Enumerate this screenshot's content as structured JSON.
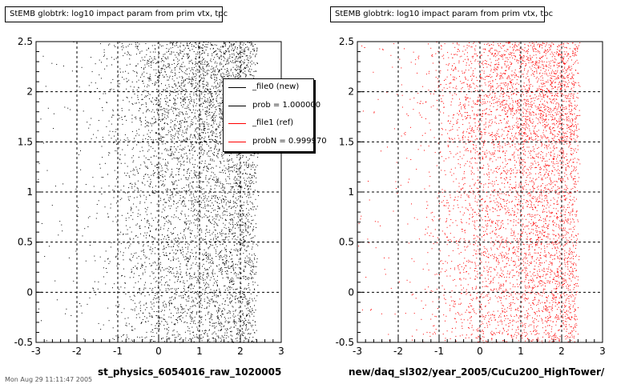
{
  "chart_data": [
    {
      "type": "scatter",
      "title": "StEMB globtrk: log10 impact param from prim vtx, tpc",
      "xlabel": "st_physics_6054016_raw_1020005",
      "ylabel": "",
      "xlim": [
        -3,
        3
      ],
      "ylim": [
        -0.5,
        2.5
      ],
      "xticks": [
        -3,
        -2,
        -1,
        0,
        1,
        2,
        3
      ],
      "yticks": [
        -0.5,
        0,
        0.5,
        1,
        1.5,
        2,
        2.5
      ],
      "grid": true,
      "series": [
        {
          "name": "_file0 (new)",
          "color": "#000000",
          "x_range": [
            -2.5,
            2.45
          ],
          "density_profile": {
            "x": [
              -2.5,
              -2.0,
              -1.5,
              -1.0,
              -0.5,
              0.0,
              0.5,
              1.0,
              1.5,
              2.0,
              2.3,
              2.45
            ],
            "relative_density": [
              0.01,
              0.03,
              0.06,
              0.15,
              0.35,
              0.55,
              0.7,
              0.8,
              0.88,
              1.0,
              0.9,
              0.0
            ]
          },
          "dense_band_y": [
            1.5,
            2.5
          ]
        }
      ]
    },
    {
      "type": "scatter",
      "title": "StEMB globtrk: log10 impact param from prim vtx, tpc",
      "xlabel": "new/daq_sl302/year_2005/CuCu200_HighTower/",
      "ylabel": "",
      "xlim": [
        -3,
        3
      ],
      "ylim": [
        -0.5,
        2.5
      ],
      "xticks": [
        -3,
        -2,
        -1,
        0,
        1,
        2,
        3
      ],
      "yticks": [
        -0.5,
        0,
        0.5,
        1,
        1.5,
        2,
        2.5
      ],
      "grid": true,
      "series": [
        {
          "name": "_file1 (ref)",
          "color": "#ff0000",
          "x_range": [
            -2.5,
            2.45
          ],
          "density_profile": {
            "x": [
              -2.5,
              -2.0,
              -1.5,
              -1.0,
              -0.5,
              0.0,
              0.5,
              1.0,
              1.5,
              2.0,
              2.3,
              2.45
            ],
            "relative_density": [
              0.01,
              0.03,
              0.06,
              0.15,
              0.35,
              0.55,
              0.7,
              0.8,
              0.88,
              1.0,
              0.9,
              0.0
            ]
          },
          "dense_band_y": [
            1.5,
            2.5
          ]
        }
      ]
    }
  ],
  "legend": {
    "placement": "top-right",
    "entries": [
      {
        "label": "_file0 (new)",
        "color": "#000000"
      },
      {
        "label": "prob = 1.000000",
        "color": "#000000"
      },
      {
        "label": "_file1 (ref)",
        "color": "#ff0000"
      },
      {
        "label": "probN = 0.999970",
        "color": "#ff0000"
      }
    ]
  },
  "footer_text": "Mon Aug 29 11:11:47 2005"
}
